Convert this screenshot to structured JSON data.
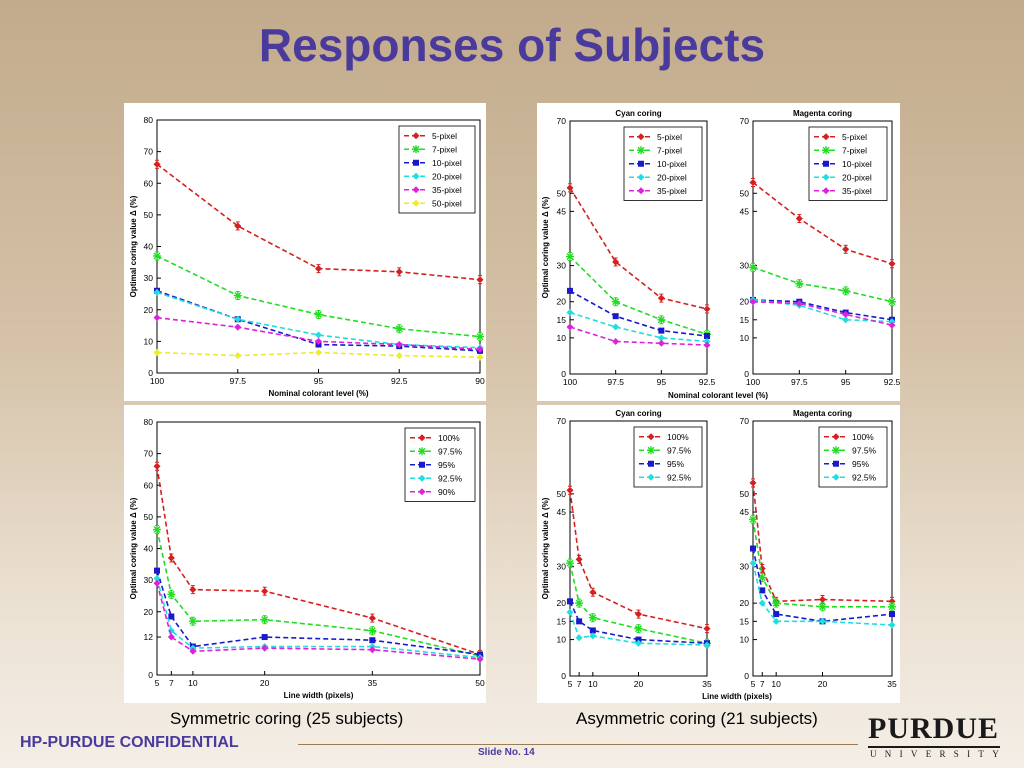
{
  "slide": {
    "title": "Responses of Subjects",
    "caption_left": "Symmetric coring (25 subjects)",
    "caption_right": "Asymmetric coring (21 subjects)",
    "footer_left": "HP-PURDUE CONFIDENTIAL",
    "slide_number": "Slide No. 14",
    "logo_word": "PURDUE",
    "logo_sub": "UNIVERSITY"
  },
  "colors": {
    "title": "#4a3a9c",
    "series_red": "#d42020",
    "series_green": "#22dd22",
    "series_blue": "#1a1acc",
    "series_cyan": "#22dddd",
    "series_magenta": "#dd22dd",
    "series_yellow": "#eeee22"
  },
  "chart_data": [
    {
      "type": "line",
      "title": "",
      "xlabel": "Nominal colorant level (%)",
      "ylabel": "Optimal coring value  Δ (%)",
      "x_ticks": [
        100,
        97.5,
        95,
        92.5,
        90
      ],
      "y_ticks": [
        0,
        10,
        20,
        30,
        40,
        50,
        60,
        70,
        80
      ],
      "xlim": [
        100,
        90
      ],
      "ylim": [
        0,
        80
      ],
      "legend_position": "top-right",
      "x": [
        100,
        97.5,
        95,
        92.5,
        90
      ],
      "series": [
        {
          "name": "5-pixel",
          "color": "#d42020",
          "values": [
            66,
            46.5,
            33,
            32,
            29.5
          ]
        },
        {
          "name": "7-pixel",
          "color": "#22dd22",
          "values": [
            37,
            24.5,
            18.5,
            14,
            11.5
          ]
        },
        {
          "name": "10-pixel",
          "color": "#1a1acc",
          "values": [
            26,
            17,
            9,
            8.5,
            7
          ]
        },
        {
          "name": "20-pixel",
          "color": "#22dddd",
          "values": [
            25.5,
            17,
            12,
            9,
            8
          ]
        },
        {
          "name": "35-pixel",
          "color": "#dd22dd",
          "values": [
            17.5,
            14.5,
            10,
            9,
            7.5
          ]
        },
        {
          "name": "50-pixel",
          "color": "#eeee22",
          "values": [
            6.5,
            5.5,
            6.5,
            5.5,
            5
          ]
        }
      ]
    },
    {
      "type": "line",
      "title": "",
      "xlabel": "Line width (pixels)",
      "ylabel": "Optimal coring value  Δ (%)",
      "x_ticks": [
        5,
        7,
        10,
        20,
        35,
        50
      ],
      "y_ticks": [
        0,
        12,
        20,
        30,
        40,
        50,
        60,
        70,
        80
      ],
      "xlim": [
        5,
        50
      ],
      "ylim": [
        0,
        80
      ],
      "legend_position": "top-right",
      "x": [
        5,
        7,
        10,
        20,
        35,
        50
      ],
      "series": [
        {
          "name": "100%",
          "color": "#d42020",
          "values": [
            66,
            37,
            27,
            26.5,
            18,
            6.5
          ]
        },
        {
          "name": "97.5%",
          "color": "#22dd22",
          "values": [
            46,
            25.5,
            17,
            17.5,
            14,
            6
          ]
        },
        {
          "name": "95%",
          "color": "#1a1acc",
          "values": [
            33,
            18.5,
            9,
            12,
            11,
            6.5
          ]
        },
        {
          "name": "92.5%",
          "color": "#22dddd",
          "values": [
            30.5,
            14,
            8.5,
            9,
            9,
            5.5
          ]
        },
        {
          "name": "90%",
          "color": "#dd22dd",
          "values": [
            29,
            12,
            7.5,
            8.5,
            8,
            5
          ]
        }
      ]
    },
    {
      "type": "line",
      "title": "Cyan coring",
      "xlabel": "",
      "ylabel": "Optimal coring value  Δ (%)",
      "x_ticks": [
        100,
        97.5,
        95,
        92.5
      ],
      "y_ticks": [
        0,
        10,
        15,
        20,
        30,
        45,
        50,
        70
      ],
      "xlim": [
        100,
        92.5
      ],
      "ylim": [
        0,
        70
      ],
      "legend_position": "top-right",
      "x": [
        100,
        97.5,
        95,
        92.5
      ],
      "series": [
        {
          "name": "5-pixel",
          "color": "#d42020",
          "values": [
            51.5,
            31,
            21,
            18
          ]
        },
        {
          "name": "7-pixel",
          "color": "#22dd22",
          "values": [
            32.5,
            20,
            15,
            11
          ]
        },
        {
          "name": "10-pixel",
          "color": "#1a1acc",
          "values": [
            23,
            16,
            12,
            10.5
          ]
        },
        {
          "name": "20-pixel",
          "color": "#22dddd",
          "values": [
            17,
            13,
            10,
            9
          ]
        },
        {
          "name": "35-pixel",
          "color": "#dd22dd",
          "values": [
            13,
            9,
            8.5,
            8
          ]
        }
      ]
    },
    {
      "type": "line",
      "title": "Magenta coring",
      "xlabel": "",
      "ylabel": "",
      "x_ticks": [
        100,
        97.5,
        95,
        92.5
      ],
      "y_ticks": [
        0,
        10,
        15,
        20,
        30,
        45,
        50,
        70
      ],
      "xlim": [
        100,
        92.5
      ],
      "ylim": [
        0,
        70
      ],
      "legend_position": "top-right",
      "x": [
        100,
        97.5,
        95,
        92.5
      ],
      "series": [
        {
          "name": "5-pixel",
          "color": "#d42020",
          "values": [
            53,
            43,
            34.5,
            30.5
          ]
        },
        {
          "name": "7-pixel",
          "color": "#22dd22",
          "values": [
            29.5,
            25,
            23,
            20
          ]
        },
        {
          "name": "10-pixel",
          "color": "#1a1acc",
          "values": [
            20.5,
            20,
            17,
            15
          ]
        },
        {
          "name": "20-pixel",
          "color": "#22dddd",
          "values": [
            20.5,
            19,
            15,
            14.5
          ]
        },
        {
          "name": "35-pixel",
          "color": "#dd22dd",
          "values": [
            20,
            19.5,
            16.5,
            13.5
          ]
        }
      ]
    },
    {
      "type": "line",
      "title": "Cyan coring",
      "xlabel": "",
      "ylabel": "Optimal coring value  Δ (%)",
      "x_ticks": [
        5,
        7,
        10,
        20,
        35
      ],
      "y_ticks": [
        0,
        10,
        15,
        20,
        30,
        45,
        50,
        70
      ],
      "xlim": [
        5,
        35
      ],
      "ylim": [
        0,
        70
      ],
      "legend_position": "top-right",
      "x": [
        5,
        7,
        10,
        20,
        35
      ],
      "series": [
        {
          "name": "100%",
          "color": "#d42020",
          "values": [
            51,
            32,
            23,
            17,
            13
          ]
        },
        {
          "name": "97.5%",
          "color": "#22dd22",
          "values": [
            31,
            20,
            16,
            13,
            9
          ]
        },
        {
          "name": "95%",
          "color": "#1a1acc",
          "values": [
            20.5,
            15,
            12.5,
            10,
            9
          ]
        },
        {
          "name": "92.5%",
          "color": "#22dddd",
          "values": [
            17.5,
            10.5,
            11,
            9,
            8.5
          ]
        }
      ]
    },
    {
      "type": "line",
      "title": "Magenta coring",
      "xlabel": "",
      "ylabel": "",
      "x_ticks": [
        5,
        7,
        10,
        20,
        35
      ],
      "y_ticks": [
        0,
        10,
        15,
        20,
        30,
        45,
        50,
        70
      ],
      "xlim": [
        5,
        35
      ],
      "ylim": [
        0,
        70
      ],
      "legend_position": "top-right",
      "x": [
        5,
        7,
        10,
        20,
        35
      ],
      "series": [
        {
          "name": "100%",
          "color": "#d42020",
          "values": [
            53,
            29.5,
            20.5,
            21,
            20.5
          ]
        },
        {
          "name": "97.5%",
          "color": "#22dd22",
          "values": [
            43,
            27,
            20,
            19,
            19
          ]
        },
        {
          "name": "95%",
          "color": "#1a1acc",
          "values": [
            35,
            23.5,
            17,
            15,
            17
          ]
        },
        {
          "name": "92.5%",
          "color": "#22dddd",
          "values": [
            31,
            20,
            15,
            15,
            14
          ]
        }
      ]
    }
  ],
  "shared_labels": {
    "top_right_xlabel": "Nominal colorant level (%)",
    "bottom_right_xlabel": "Line width (pixels)"
  }
}
